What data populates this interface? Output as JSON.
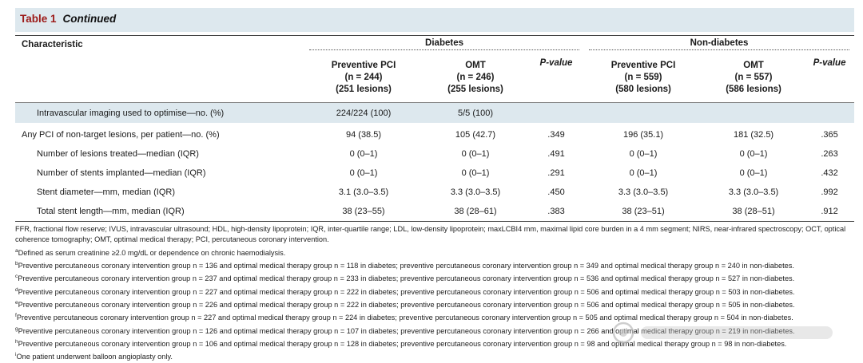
{
  "title": {
    "label": "Table 1",
    "subtitle": "Continued"
  },
  "header": {
    "characteristic": "Characteristic",
    "groups": [
      "Diabetes",
      "Non-diabetes"
    ],
    "columns": [
      {
        "line1": "Preventive PCI",
        "line2": "(n = 244)",
        "line3": "(251 lesions)"
      },
      {
        "line1": "OMT",
        "line2": "(n = 246)",
        "line3": "(255 lesions)"
      },
      {
        "line1": "P-value",
        "line2": "",
        "line3": ""
      },
      {
        "line1": "Preventive PCI",
        "line2": "(n = 559)",
        "line3": "(580 lesions)"
      },
      {
        "line1": "OMT",
        "line2": "(n = 557)",
        "line3": "(586 lesions)"
      },
      {
        "line1": "P-value",
        "line2": "",
        "line3": ""
      }
    ]
  },
  "rows": [
    {
      "label": "Intravascular imaging used to optimise—no. (%)",
      "cells": [
        "224/224 (100)",
        "5/5 (100)",
        "",
        "",
        "",
        ""
      ]
    },
    {
      "label": "Any PCI of non-target lesions, per patient—no. (%)",
      "cells": [
        "94 (38.5)",
        "105 (42.7)",
        ".349",
        "196 (35.1)",
        "181 (32.5)",
        ".365"
      ]
    },
    {
      "label": "Number of lesions treated—median (IQR)",
      "cells": [
        "0 (0–1)",
        "0 (0–1)",
        ".491",
        "0 (0–1)",
        "0 (0–1)",
        ".263"
      ]
    },
    {
      "label": "Number of stents implanted—median (IQR)",
      "cells": [
        "0 (0–1)",
        "0 (0–1)",
        ".291",
        "0 (0–1)",
        "0 (0–1)",
        ".432"
      ]
    },
    {
      "label": "Stent diameter—mm, median (IQR)",
      "cells": [
        "3.1 (3.0–3.5)",
        "3.3 (3.0–3.5)",
        ".450",
        "3.3 (3.0–3.5)",
        "3.3 (3.0–3.5)",
        ".992"
      ]
    },
    {
      "label": "Total stent length—mm, median (IQR)",
      "cells": [
        "38 (23–55)",
        "38 (28–61)",
        ".383",
        "38 (23–51)",
        "38 (28–51)",
        ".912"
      ]
    }
  ],
  "footnotes": {
    "abbrev": "FFR, fractional flow reserve; IVUS, intravascular ultrasound; HDL, high-density lipoprotein; IQR, inter-quartile range; LDL, low-density lipoprotein; maxLCBI4 mm, maximal lipid core burden in a 4 mm segment; NIRS, near-infrared spectroscopy; OCT, optical coherence tomography; OMT, optimal medical therapy; PCI, percutaneous coronary intervention.",
    "items": [
      {
        "mark": "a",
        "text": "Defined as serum creatinine ≥2.0 mg/dL or dependence on chronic haemodialysis."
      },
      {
        "mark": "b",
        "text": "Preventive percutaneous coronary intervention group n = 136 and optimal medical therapy group n = 118 in diabetes; preventive percutaneous coronary intervention group n = 349 and optimal medical therapy group n = 240 in non-diabetes."
      },
      {
        "mark": "c",
        "text": "Preventive percutaneous coronary intervention group n = 237 and optimal medical therapy group n = 233 in diabetes; preventive percutaneous coronary intervention group n = 536 and optimal medical therapy group n = 527 in non-diabetes."
      },
      {
        "mark": "d",
        "text": "Preventive percutaneous coronary intervention group n = 227 and optimal medical therapy group n = 222 in diabetes; preventive percutaneous coronary intervention group n = 506 and optimal medical therapy group n = 503 in non-diabetes."
      },
      {
        "mark": "e",
        "text": "Preventive percutaneous coronary intervention group n = 226 and optimal medical therapy group n = 222 in diabetes; preventive percutaneous coronary intervention group n = 506 and optimal medical therapy group n = 505 in non-diabetes."
      },
      {
        "mark": "f",
        "text": "Preventive percutaneous coronary intervention group n = 227 and optimal medical therapy group n = 224 in diabetes; preventive percutaneous coronary intervention group n = 505 and optimal medical therapy group n = 504 in non-diabetes."
      },
      {
        "mark": "g",
        "text": "Preventive percutaneous coronary intervention group n = 126 and optimal medical therapy group n = 107 in diabetes; preventive percutaneous coronary intervention group n = 266 and optimal medical therapy group n = 219 in non-diabetes."
      },
      {
        "mark": "h",
        "text": "Preventive percutaneous coronary intervention group n = 106 and optimal medical therapy group n = 128 in diabetes; preventive percutaneous coronary intervention group n = 98 and optimal medical therapy group n = 98 in non-diabetes."
      },
      {
        "mark": "i",
        "text": "One patient underwent balloon angioplasty only."
      }
    ]
  },
  "colors": {
    "title_red": "#9c1a18",
    "band": "#dde8ee"
  }
}
